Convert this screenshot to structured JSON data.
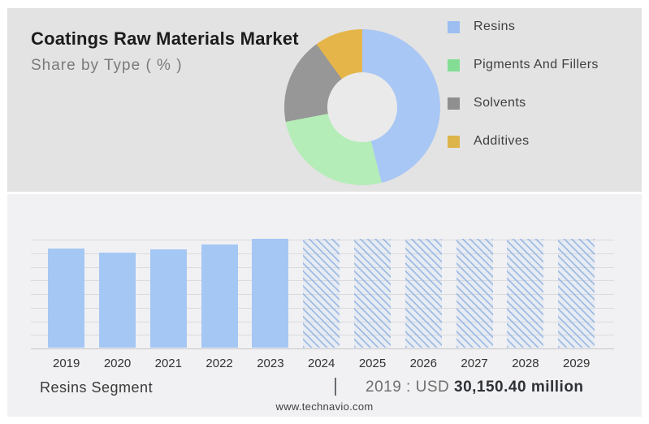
{
  "page": {
    "background": "#ffffff",
    "top_panel_bg": "#e3e3e3",
    "bottom_panel_bg": "#f1f1f3"
  },
  "header": {
    "title": "Coatings Raw Materials Market",
    "subtitle": "Share by Type ( % )"
  },
  "footer": {
    "segment_label": "Resins Segment",
    "divider": "|",
    "value_prefix": "2019 : USD",
    "value_bold": "30,150.40 million",
    "website": "www.technavio.com"
  },
  "chart_data": [
    {
      "type": "pie",
      "variant": "donut",
      "title": "Coatings Raw Materials Market",
      "subtitle": "Share by Type ( % )",
      "legend_position": "right",
      "segments": [
        {
          "label": "Resins",
          "pct_est": 46,
          "slice_color": "#a9c7f5",
          "legend_color": "#9cbef1"
        },
        {
          "label": "Pigments And Fillers",
          "pct_est": 26,
          "slice_color": "#b5edb8",
          "legend_color": "#84dd94"
        },
        {
          "label": "Solvents",
          "pct_est": 18,
          "slice_color": "#979797",
          "legend_color": "#8f8f8f"
        },
        {
          "label": "Additives",
          "pct_est": 10,
          "slice_color": "#e6b54a",
          "legend_color": "#ddb44a"
        }
      ],
      "note": "No percentage labels shown in image; pct values estimated from arc angles."
    },
    {
      "type": "bar",
      "categories": [
        "2019",
        "2020",
        "2021",
        "2022",
        "2023",
        "2024",
        "2025",
        "2026",
        "2027",
        "2028",
        "2029"
      ],
      "bars": [
        {
          "year": "2019",
          "height_pct": 91,
          "forecast": false
        },
        {
          "year": "2020",
          "height_pct": 87,
          "forecast": false
        },
        {
          "year": "2021",
          "height_pct": 90,
          "forecast": false
        },
        {
          "year": "2022",
          "height_pct": 95,
          "forecast": false
        },
        {
          "year": "2023",
          "height_pct": 100,
          "forecast": false
        },
        {
          "year": "2024",
          "height_pct": 100,
          "forecast": true
        },
        {
          "year": "2025",
          "height_pct": 100,
          "forecast": true
        },
        {
          "year": "2026",
          "height_pct": 100,
          "forecast": true
        },
        {
          "year": "2027",
          "height_pct": 100,
          "forecast": true
        },
        {
          "year": "2028",
          "height_pct": 100,
          "forecast": true
        },
        {
          "year": "2029",
          "height_pct": 100,
          "forecast": true
        }
      ],
      "known_values": {
        "2019": "USD 30,150.40 million"
      },
      "bar_color": "#a5c7f4",
      "grid": true,
      "gridline_count": 9,
      "ylabel": "",
      "xlabel": "",
      "note": "Y-axis unlabeled; 2024-2029 drawn as full-height hatched forecast placeholders."
    }
  ]
}
